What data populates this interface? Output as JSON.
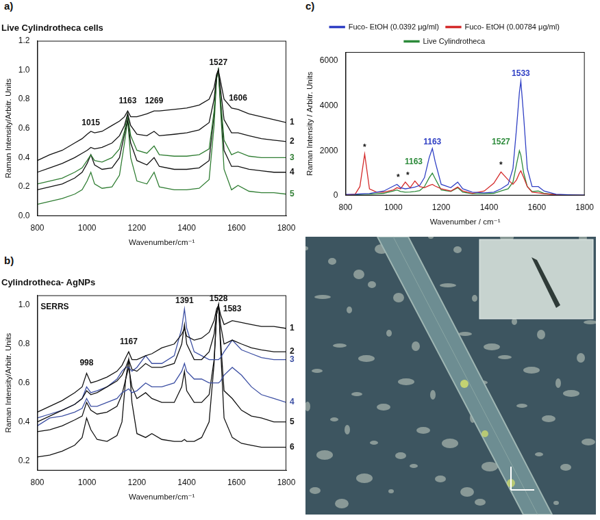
{
  "chart_data": [
    {
      "type": "line",
      "panel": "a)",
      "title": "Live Cylindrotheca cells",
      "x_label": "Wavenumber/cm⁻¹",
      "y_label": "Raman Intensity/Arbitr. Units",
      "xlim": [
        800,
        1800
      ],
      "xticks": [
        800,
        1000,
        1200,
        1400,
        1600,
        1800
      ],
      "ylim": [
        0,
        1.2
      ],
      "yticks": [
        {
          "value": 0,
          "label": "0.0"
        },
        0.2,
        0.4,
        0.6,
        0.8,
        {
          "value": 1,
          "label": "1.0"
        },
        1.2
      ],
      "grid": false,
      "x": [
        800,
        850,
        900,
        950,
        980,
        1000,
        1015,
        1030,
        1060,
        1100,
        1130,
        1150,
        1163,
        1175,
        1200,
        1240,
        1269,
        1290,
        1350,
        1400,
        1450,
        1490,
        1510,
        1520,
        1527,
        1535,
        1550,
        1580,
        1606,
        1650,
        1700,
        1750,
        1800
      ],
      "series": [
        {
          "name": "1",
          "color": "#111111",
          "values": [
            0.38,
            0.42,
            0.45,
            0.5,
            0.53,
            0.56,
            0.58,
            0.57,
            0.58,
            0.62,
            0.65,
            0.68,
            0.72,
            0.68,
            0.68,
            0.7,
            0.72,
            0.72,
            0.73,
            0.74,
            0.76,
            0.8,
            0.88,
            0.97,
            1.0,
            0.93,
            0.8,
            0.74,
            0.73,
            0.7,
            0.68,
            0.66,
            0.64
          ]
        },
        {
          "name": "2",
          "color": "#111111",
          "values": [
            0.3,
            0.33,
            0.36,
            0.4,
            0.43,
            0.45,
            0.47,
            0.46,
            0.47,
            0.5,
            0.55,
            0.62,
            0.7,
            0.62,
            0.56,
            0.55,
            0.58,
            0.55,
            0.56,
            0.57,
            0.59,
            0.64,
            0.8,
            0.96,
            1.0,
            0.88,
            0.66,
            0.57,
            0.57,
            0.55,
            0.53,
            0.52,
            0.51
          ]
        },
        {
          "name": "3",
          "color": "#2f7d32",
          "values": [
            0.22,
            0.24,
            0.26,
            0.3,
            0.33,
            0.38,
            0.42,
            0.38,
            0.37,
            0.4,
            0.46,
            0.58,
            0.7,
            0.55,
            0.45,
            0.43,
            0.48,
            0.42,
            0.41,
            0.41,
            0.42,
            0.46,
            0.72,
            0.95,
            1.0,
            0.82,
            0.52,
            0.42,
            0.44,
            0.41,
            0.4,
            0.4,
            0.4
          ]
        },
        {
          "name": "4",
          "color": "#111111",
          "values": [
            0.18,
            0.2,
            0.22,
            0.26,
            0.3,
            0.36,
            0.42,
            0.35,
            0.32,
            0.33,
            0.4,
            0.56,
            0.66,
            0.5,
            0.38,
            0.35,
            0.4,
            0.34,
            0.32,
            0.32,
            0.33,
            0.38,
            0.7,
            0.95,
            1.0,
            0.8,
            0.45,
            0.34,
            0.34,
            0.32,
            0.31,
            0.3,
            0.3
          ]
        },
        {
          "name": "5",
          "color": "#2f7d32",
          "values": [
            0.08,
            0.1,
            0.12,
            0.15,
            0.18,
            0.24,
            0.3,
            0.22,
            0.19,
            0.2,
            0.28,
            0.5,
            0.66,
            0.4,
            0.24,
            0.22,
            0.3,
            0.2,
            0.18,
            0.18,
            0.19,
            0.25,
            0.62,
            0.94,
            1.0,
            0.76,
            0.32,
            0.18,
            0.21,
            0.17,
            0.16,
            0.16,
            0.15
          ]
        }
      ],
      "annotations": [
        {
          "text": "1015",
          "x": 1015,
          "y": 0.61,
          "color": "#111111"
        },
        {
          "text": "1163",
          "x": 1163,
          "y": 0.76,
          "color": "#111111"
        },
        {
          "text": "1269",
          "x": 1269,
          "y": 0.76,
          "color": "#111111"
        },
        {
          "text": "1527",
          "x": 1527,
          "y": 1.02,
          "color": "#111111"
        },
        {
          "text": "1606",
          "x": 1606,
          "y": 0.78,
          "color": "#111111"
        }
      ]
    },
    {
      "type": "line",
      "panel": "b)",
      "title": "Cylindrotheca- AgNPs",
      "x_label": "Wavenumber/cm⁻¹",
      "y_label": "Raman Intensity/Arbitr. Units",
      "xlim": [
        800,
        1800
      ],
      "xticks": [
        800,
        1000,
        1200,
        1400,
        1600,
        1800
      ],
      "ylim": [
        0.15,
        1.05
      ],
      "yticks": [
        0.2,
        0.4,
        0.6,
        0.8,
        {
          "value": 1,
          "label": "1.0"
        }
      ],
      "grid": false,
      "x": [
        800,
        850,
        900,
        950,
        980,
        998,
        1015,
        1040,
        1080,
        1120,
        1140,
        1155,
        1167,
        1180,
        1200,
        1235,
        1260,
        1300,
        1350,
        1380,
        1391,
        1400,
        1430,
        1460,
        1490,
        1510,
        1520,
        1528,
        1536,
        1550,
        1583,
        1620,
        1660,
        1700,
        1750,
        1800
      ],
      "series": [
        {
          "name": "1",
          "color": "#111111",
          "values": [
            0.45,
            0.48,
            0.51,
            0.55,
            0.58,
            0.65,
            0.6,
            0.61,
            0.63,
            0.66,
            0.69,
            0.73,
            0.76,
            0.72,
            0.72,
            0.74,
            0.75,
            0.78,
            0.8,
            0.85,
            0.88,
            0.84,
            0.82,
            0.83,
            0.86,
            0.92,
            0.98,
            1.0,
            0.95,
            0.9,
            0.92,
            0.91,
            0.9,
            0.89,
            0.89,
            0.88
          ]
        },
        {
          "name": "2",
          "color": "#111111",
          "values": [
            0.4,
            0.43,
            0.46,
            0.49,
            0.52,
            0.56,
            0.54,
            0.55,
            0.58,
            0.61,
            0.64,
            0.68,
            0.72,
            0.67,
            0.66,
            0.7,
            0.68,
            0.68,
            0.7,
            0.8,
            0.9,
            0.8,
            0.72,
            0.72,
            0.76,
            0.85,
            0.96,
            1.0,
            0.9,
            0.8,
            0.82,
            0.8,
            0.78,
            0.77,
            0.76,
            0.76
          ]
        },
        {
          "name": "3",
          "color": "#3c4fa3",
          "values": [
            0.42,
            0.44,
            0.46,
            0.49,
            0.52,
            0.58,
            0.55,
            0.56,
            0.58,
            0.62,
            0.66,
            0.68,
            0.68,
            0.66,
            0.68,
            0.74,
            0.7,
            0.7,
            0.74,
            0.88,
            0.98,
            0.88,
            0.76,
            0.74,
            0.72,
            0.72,
            0.72,
            0.72,
            0.73,
            0.76,
            0.82,
            0.77,
            0.75,
            0.73,
            0.72,
            0.72
          ]
        },
        {
          "name": "4",
          "color": "#3c4fa3",
          "values": [
            0.38,
            0.42,
            0.43,
            0.45,
            0.47,
            0.52,
            0.48,
            0.48,
            0.5,
            0.52,
            0.55,
            0.56,
            0.57,
            0.55,
            0.56,
            0.6,
            0.58,
            0.58,
            0.6,
            0.66,
            0.7,
            0.66,
            0.62,
            0.62,
            0.6,
            0.6,
            0.6,
            0.6,
            0.61,
            0.64,
            0.68,
            0.64,
            0.58,
            0.54,
            0.52,
            0.5
          ]
        },
        {
          "name": "5",
          "color": "#111111",
          "values": [
            0.35,
            0.36,
            0.38,
            0.41,
            0.43,
            0.5,
            0.46,
            0.44,
            0.45,
            0.48,
            0.54,
            0.62,
            0.68,
            0.58,
            0.52,
            0.55,
            0.52,
            0.5,
            0.5,
            0.58,
            0.66,
            0.56,
            0.5,
            0.5,
            0.54,
            0.72,
            0.95,
            1.0,
            0.82,
            0.56,
            0.52,
            0.46,
            0.43,
            0.42,
            0.4,
            0.4
          ]
        },
        {
          "name": "6",
          "color": "#111111",
          "values": [
            0.22,
            0.23,
            0.25,
            0.28,
            0.32,
            0.42,
            0.36,
            0.31,
            0.3,
            0.33,
            0.4,
            0.62,
            0.72,
            0.5,
            0.34,
            0.32,
            0.34,
            0.31,
            0.3,
            0.3,
            0.31,
            0.3,
            0.3,
            0.32,
            0.4,
            0.7,
            0.95,
            1.0,
            0.78,
            0.42,
            0.32,
            0.29,
            0.28,
            0.27,
            0.27,
            0.27
          ]
        }
      ],
      "annotations": [
        {
          "text": "SERRS",
          "x": 870,
          "y": 0.97,
          "color": "#111111"
        },
        {
          "text": "998",
          "x": 998,
          "y": 0.68,
          "color": "#111111"
        },
        {
          "text": "1167",
          "x": 1167,
          "y": 0.79,
          "color": "#111111"
        },
        {
          "text": "1391",
          "x": 1391,
          "y": 1.0,
          "color": "#111111"
        },
        {
          "text": "1528",
          "x": 1528,
          "y": 1.01,
          "color": "#111111"
        },
        {
          "text": "1583",
          "x": 1583,
          "y": 0.96,
          "color": "#111111"
        }
      ]
    },
    {
      "type": "line",
      "panel": "c)",
      "x_label": "Wavenumber / cm⁻¹",
      "y_label": "Raman Intensity / Arbitr. Units",
      "xlim": [
        800,
        1800
      ],
      "xticks": [
        800,
        1000,
        1200,
        1400,
        1600,
        1800
      ],
      "ylim": [
        0,
        6400
      ],
      "yticks": [
        0,
        2000,
        4000,
        6000
      ],
      "grid": false,
      "legend": "top",
      "x": [
        800,
        840,
        860,
        880,
        900,
        930,
        960,
        1000,
        1015,
        1030,
        1050,
        1070,
        1090,
        1110,
        1130,
        1150,
        1163,
        1175,
        1200,
        1240,
        1269,
        1290,
        1330,
        1380,
        1420,
        1450,
        1480,
        1500,
        1515,
        1527,
        1533,
        1545,
        1560,
        1580,
        1606,
        1630,
        1680,
        1750,
        1800
      ],
      "series": [
        {
          "name": "Fuco- EtOH (0.0392 μg/ml)",
          "color": "#2f3fc4",
          "values": [
            50,
            60,
            70,
            80,
            90,
            150,
            200,
            420,
            500,
            350,
            300,
            330,
            380,
            450,
            800,
            1700,
            2100,
            1500,
            500,
            350,
            600,
            300,
            150,
            120,
            150,
            300,
            500,
            1200,
            3000,
            4600,
            5100,
            3500,
            1200,
            400,
            400,
            200,
            60,
            30,
            20
          ]
        },
        {
          "name": "Fuco- EtOH (0.00784 μg/ml)",
          "color": "#d42a2a",
          "values": [
            30,
            60,
            400,
            1850,
            300,
            150,
            150,
            250,
            350,
            300,
            600,
            350,
            650,
            400,
            350,
            450,
            500,
            420,
            300,
            200,
            380,
            200,
            100,
            200,
            550,
            1050,
            700,
            500,
            700,
            1000,
            1100,
            800,
            400,
            150,
            120,
            80,
            40,
            20,
            10
          ]
        },
        {
          "name": "Live Cylindrotheca",
          "color": "#2c8a3a",
          "values": [
            30,
            40,
            50,
            60,
            60,
            80,
            100,
            200,
            250,
            180,
            150,
            160,
            180,
            220,
            400,
            800,
            1000,
            750,
            250,
            180,
            350,
            150,
            80,
            80,
            100,
            200,
            300,
            600,
            1400,
            2000,
            1800,
            1000,
            400,
            180,
            200,
            100,
            40,
            20,
            10
          ]
        }
      ],
      "annotations": [
        {
          "text": "1533",
          "x": 1533,
          "y": 5250,
          "color": "#2f3fc4"
        },
        {
          "text": "1163",
          "x": 1163,
          "y": 2200,
          "color": "#2f3fc4"
        },
        {
          "text": "1163",
          "x": 1085,
          "y": 1300,
          "color": "#2c8a3a"
        },
        {
          "text": "1527",
          "x": 1450,
          "y": 2200,
          "color": "#2c8a3a"
        },
        {
          "text": "*",
          "x": 880,
          "y": 1950,
          "color": "#111111"
        },
        {
          "text": "*",
          "x": 1020,
          "y": 620,
          "color": "#111111"
        },
        {
          "text": "*",
          "x": 1060,
          "y": 700,
          "color": "#111111"
        },
        {
          "text": "*",
          "x": 1450,
          "y": 1150,
          "color": "#111111"
        }
      ]
    }
  ]
}
